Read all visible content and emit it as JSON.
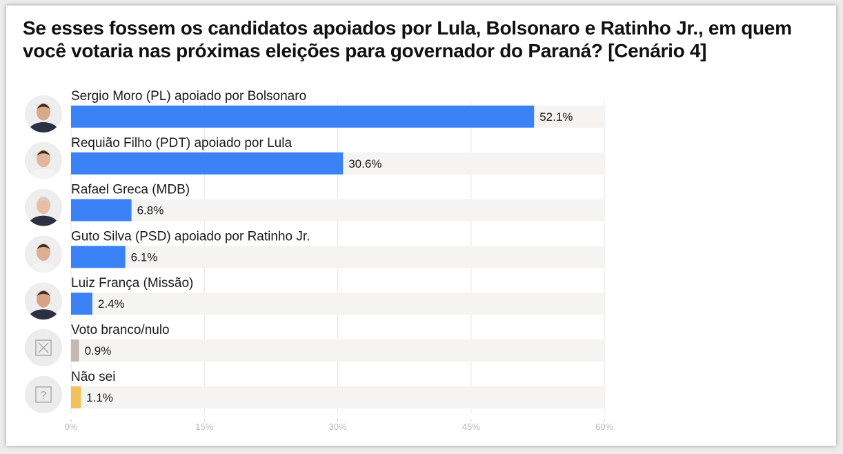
{
  "chart_data": {
    "type": "bar",
    "orientation": "horizontal",
    "title": "Se esses fossem os candidatos apoiados por Lula, Bolsonaro e Ratinho Jr., em quem você votaria nas próximas eleições para governador do Paraná? [Cenário 4]",
    "categories": [
      "Sergio Moro (PL) apoiado por Bolsonaro",
      "Requião Filho (PDT) apoiado por Lula",
      "Rafael Greca (MDB)",
      "Guto Silva (PSD) apoiado por Ratinho Jr.",
      "Luiz França (Missão)",
      "Voto branco/nulo",
      "Não sei"
    ],
    "values": [
      52.1,
      30.6,
      6.8,
      6.1,
      2.4,
      0.9,
      1.1
    ],
    "value_labels": [
      "52.1%",
      "30.6%",
      "6.8%",
      "6.1%",
      "2.4%",
      "0.9%",
      "1.1%"
    ],
    "icons": [
      "avatar-photo",
      "avatar-photo",
      "avatar-photo",
      "avatar-photo",
      "avatar-photo",
      "x-box-icon",
      "question-box-icon"
    ],
    "bar_colors": [
      "#3b82f6",
      "#3b82f6",
      "#3b82f6",
      "#3b82f6",
      "#3b82f6",
      "#c4b8b0",
      "#f2c15b"
    ],
    "track_color": "#f5f4f2",
    "xlim": [
      0,
      60
    ],
    "x_ticks": [
      0,
      15,
      30,
      45,
      60
    ],
    "x_tick_labels": [
      "0%",
      "15%",
      "30%",
      "45%",
      "60%"
    ],
    "grid": true,
    "legend": "none"
  }
}
